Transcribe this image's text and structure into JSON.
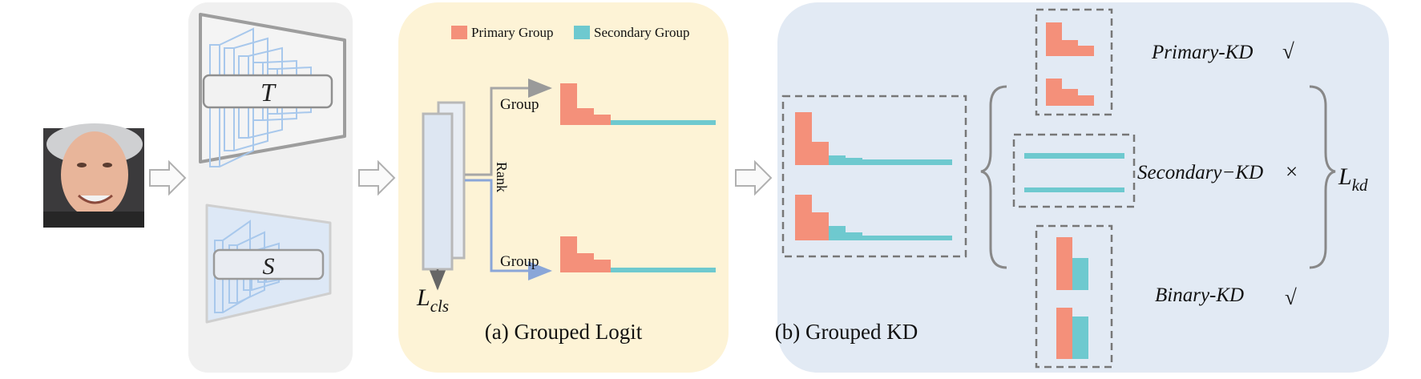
{
  "colors": {
    "primary": "#f4907a",
    "secondary": "#6ec9cf",
    "panel_models": "#f0f0f0",
    "panel_logit": "#fdf3d6",
    "panel_kd": "#e2eaf4",
    "network_blue": "#a8c8ec",
    "arrow_gray": "#b0b0b0",
    "dashed_gray": "#777777"
  },
  "models": {
    "teacher_label": "T",
    "student_label": "S",
    "input_image": "face-photo"
  },
  "legend": {
    "primary": "Primary Group",
    "secondary": "Secondary Group"
  },
  "grouped_logit": {
    "caption": "(a) Grouped Logit",
    "group_label_top": "Group",
    "group_label_bottom": "Group",
    "rank_label": "Rank",
    "loss_cls": {
      "main": "L",
      "sub": "cls"
    }
  },
  "grouped_kd": {
    "caption": "(b) Grouped KD",
    "primary_kd": {
      "label": "Primary-KD",
      "mark": "√"
    },
    "secondary_kd": {
      "label": "Secondary−KD",
      "mark": "×"
    },
    "binary_kd": {
      "label": "Binary-KD",
      "mark": "√"
    },
    "loss_kd": {
      "main": "L",
      "sub": "kd"
    }
  }
}
